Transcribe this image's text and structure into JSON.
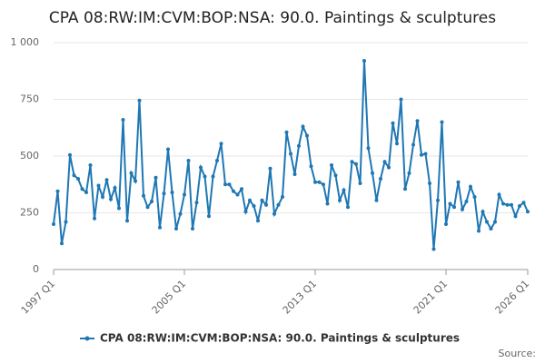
{
  "chart_data": {
    "type": "line",
    "title": "CPA 08:RW:IM:CVM:BOP:NSA: 90.0. Paintings & sculptures",
    "source": "Source:",
    "categories": [
      "1997 Q1",
      "1997 Q2",
      "1997 Q3",
      "1997 Q4",
      "1998 Q1",
      "1998 Q2",
      "1998 Q3",
      "1998 Q4",
      "1999 Q1",
      "1999 Q2",
      "1999 Q3",
      "1999 Q4",
      "2000 Q1",
      "2000 Q2",
      "2000 Q3",
      "2000 Q4",
      "2001 Q1",
      "2001 Q2",
      "2001 Q3",
      "2001 Q4",
      "2002 Q1",
      "2002 Q2",
      "2002 Q3",
      "2002 Q4",
      "2003 Q1",
      "2003 Q2",
      "2003 Q3",
      "2003 Q4",
      "2004 Q1",
      "2004 Q2",
      "2004 Q3",
      "2004 Q4",
      "2005 Q1",
      "2005 Q2",
      "2005 Q3",
      "2005 Q4",
      "2006 Q1",
      "2006 Q2",
      "2006 Q3",
      "2006 Q4",
      "2007 Q1",
      "2007 Q2",
      "2007 Q3",
      "2007 Q4",
      "2008 Q1",
      "2008 Q2",
      "2008 Q3",
      "2008 Q4",
      "2009 Q1",
      "2009 Q2",
      "2009 Q3",
      "2009 Q4",
      "2010 Q1",
      "2010 Q2",
      "2010 Q3",
      "2010 Q4",
      "2011 Q1",
      "2011 Q2",
      "2011 Q3",
      "2011 Q4",
      "2012 Q1",
      "2012 Q2",
      "2012 Q3",
      "2012 Q4",
      "2013 Q1",
      "2013 Q2",
      "2013 Q3",
      "2013 Q4",
      "2014 Q1",
      "2014 Q2",
      "2014 Q3",
      "2014 Q4",
      "2015 Q1",
      "2015 Q2",
      "2015 Q3",
      "2015 Q4",
      "2016 Q1",
      "2016 Q2",
      "2016 Q3",
      "2016 Q4",
      "2017 Q1",
      "2017 Q2",
      "2017 Q3",
      "2017 Q4",
      "2018 Q1",
      "2018 Q2",
      "2018 Q3",
      "2018 Q4",
      "2019 Q1",
      "2019 Q2",
      "2019 Q3",
      "2019 Q4",
      "2020 Q1",
      "2020 Q2",
      "2020 Q3",
      "2020 Q4",
      "2021 Q1",
      "2021 Q2",
      "2021 Q3",
      "2021 Q4",
      "2022 Q1",
      "2022 Q2",
      "2022 Q3",
      "2022 Q4",
      "2023 Q1",
      "2023 Q2",
      "2023 Q3",
      "2023 Q4",
      "2024 Q1",
      "2024 Q2",
      "2024 Q3",
      "2024 Q4",
      "2025 Q1",
      "2025 Q2",
      "2025 Q3",
      "2025 Q4",
      "2026 Q1"
    ],
    "xticks": [
      "1997 Q1",
      "2005 Q1",
      "2013 Q1",
      "2021 Q1",
      "2026 Q1"
    ],
    "series": [
      {
        "name": "CPA 08:RW:IM:CVM:BOP:NSA: 90.0. Paintings & sculptures",
        "color": "#1f77b4",
        "values": [
          200,
          345,
          115,
          210,
          505,
          415,
          400,
          355,
          340,
          460,
          225,
          370,
          320,
          395,
          310,
          360,
          270,
          660,
          215,
          425,
          390,
          745,
          325,
          275,
          300,
          405,
          185,
          335,
          530,
          340,
          180,
          245,
          330,
          480,
          180,
          295,
          450,
          410,
          235,
          410,
          480,
          555,
          375,
          375,
          345,
          330,
          355,
          255,
          305,
          280,
          215,
          305,
          285,
          445,
          245,
          285,
          320,
          605,
          510,
          420,
          545,
          630,
          590,
          455,
          385,
          385,
          375,
          290,
          460,
          415,
          305,
          350,
          275,
          475,
          465,
          380,
          920,
          535,
          425,
          305,
          400,
          475,
          450,
          645,
          555,
          750,
          355,
          425,
          550,
          655,
          505,
          510,
          380,
          90,
          305,
          650,
          200,
          290,
          275,
          385,
          265,
          300,
          365,
          320,
          170,
          255,
          210,
          180,
          210,
          330,
          290,
          285,
          285,
          235,
          280,
          295,
          255
        ]
      }
    ],
    "ylim": [
      0,
      1000
    ],
    "yticks": [
      0,
      250,
      500,
      750,
      {
        "value": 1000,
        "label": "1 000"
      }
    ],
    "grid": true
  }
}
